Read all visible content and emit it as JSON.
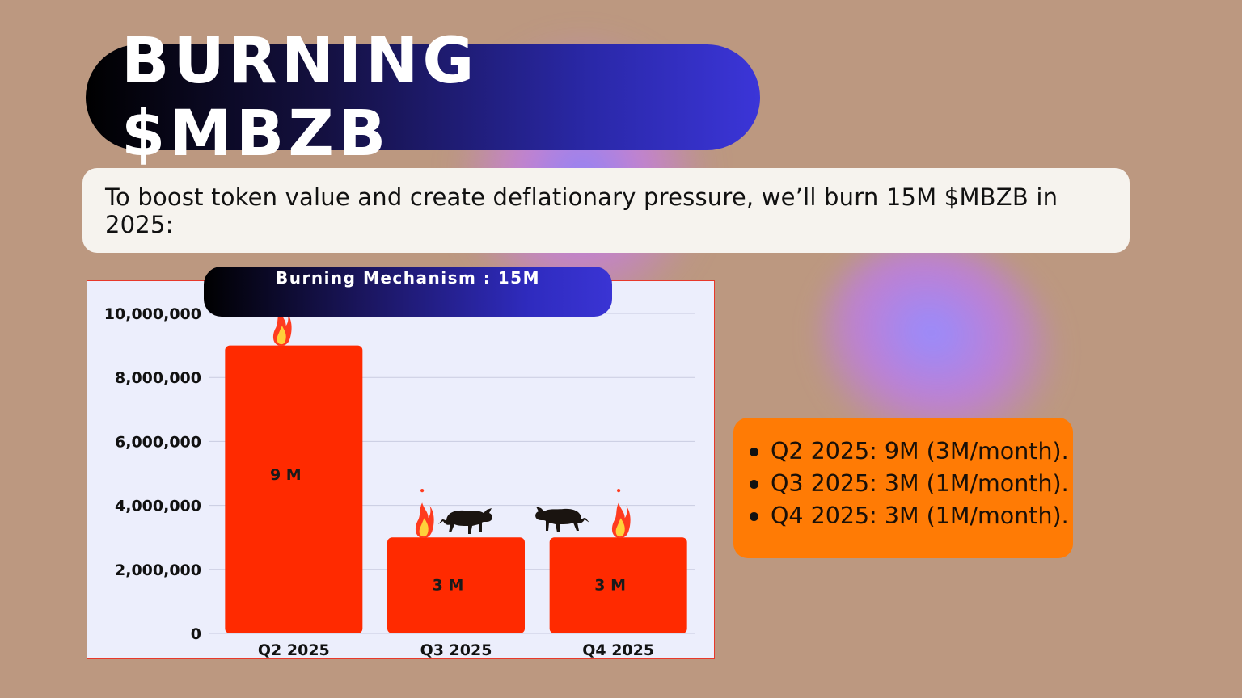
{
  "title": "BURNING $MBZB",
  "intro": "To boost token value and create deflationary pressure, we’ll burn 15M $MBZB in 2025:",
  "chart_header": "Burning Mechanism : 15M",
  "chart_data": {
    "type": "bar",
    "title": "Burning Mechanism : 15M",
    "categories": [
      "Q2 2025",
      "Q3 2025",
      "Q4 2025"
    ],
    "values": [
      9000000,
      3000000,
      3000000
    ],
    "data_labels": [
      "9 M",
      "3 M",
      "3 M"
    ],
    "yticks": [
      "0",
      "2,000,000",
      "4,000,000",
      "6,000,000",
      "8,000,000",
      "10,000,000"
    ],
    "ylim": [
      0,
      10000000
    ],
    "xlabel": "",
    "ylabel": "",
    "grid": true,
    "bar_color": "#ff2a00",
    "decorations": [
      "fire-icon",
      "fire-icon",
      "bull-icon",
      "bull-icon",
      "fire-icon"
    ]
  },
  "schedule": [
    "Q2 2025: 9M (3M/month).",
    "Q3 2025: 3M (1M/month).",
    "Q4 2025: 3M (1M/month)."
  ],
  "colors": {
    "background": "#bc9880",
    "bar": "#ff2a00",
    "info_box": "#ff7b05",
    "pill_accent": "#3b35d8"
  }
}
